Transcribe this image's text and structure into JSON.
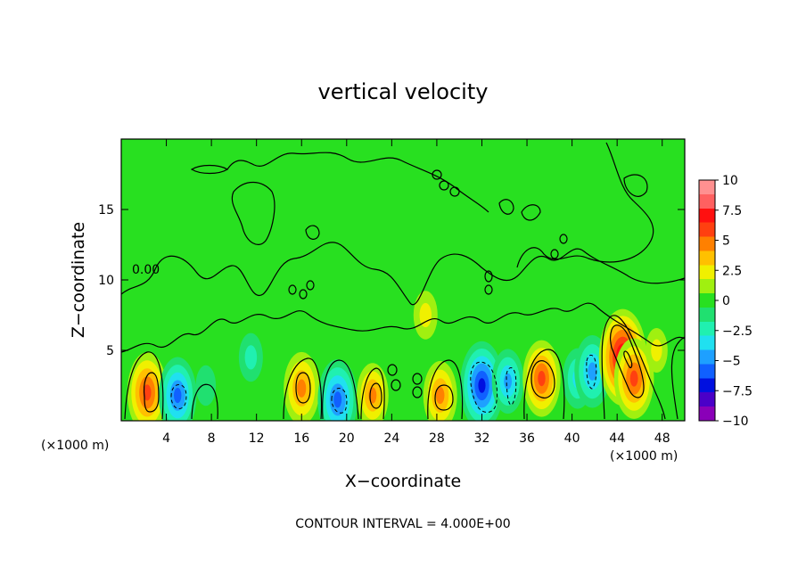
{
  "chart_data": {
    "type": "heatmap",
    "title": "vertical velocity",
    "xlabel": "X−coordinate",
    "ylabel": "Z−coordinate",
    "x_unit": "(×1000 m)",
    "x_unit_right": "(×1000 m)",
    "xlim": [
      0,
      50
    ],
    "ylim": [
      0,
      20
    ],
    "xticks": [
      "4",
      "8",
      "12",
      "16",
      "20",
      "24",
      "28",
      "32",
      "36",
      "40",
      "44",
      "48"
    ],
    "yticks": [
      "5",
      "10",
      "15"
    ],
    "colorbar": {
      "ticks": [
        "10",
        "7.5",
        "5",
        "2.5",
        "0",
        "−2.5",
        "−5",
        "−7.5",
        "−10"
      ],
      "range": [
        -10,
        10
      ],
      "colors": [
        "#8a00b8",
        "#4a00c8",
        "#0010e0",
        "#1060ff",
        "#1ea0ff",
        "#20e0f0",
        "#20f0b0",
        "#20e070",
        "#28e020",
        "#a0f010",
        "#f0f000",
        "#ffc000",
        "#ff8000",
        "#ff4010",
        "#ff1010",
        "#ff6060",
        "#ff9090"
      ]
    },
    "contour_label": "0.00",
    "footer": "CONTOUR INTERVAL = 4.000E+00",
    "cells": [
      {
        "x": 2.3,
        "z": 2.0,
        "w": 6.5
      },
      {
        "x": 5.0,
        "z": 1.8,
        "w": -6.0
      },
      {
        "x": 7.5,
        "z": 2.5,
        "w": -1.5
      },
      {
        "x": 11.5,
        "z": 4.5,
        "w": -2.5
      },
      {
        "x": 16.0,
        "z": 2.3,
        "w": 5.5
      },
      {
        "x": 19.2,
        "z": 1.5,
        "w": -6.5
      },
      {
        "x": 22.3,
        "z": 1.8,
        "w": 4.5
      },
      {
        "x": 28.3,
        "z": 1.8,
        "w": 5.0
      },
      {
        "x": 32.0,
        "z": 2.5,
        "w": -7.5
      },
      {
        "x": 34.3,
        "z": 2.8,
        "w": -4.5
      },
      {
        "x": 37.3,
        "z": 3.0,
        "w": 6.0
      },
      {
        "x": 40.5,
        "z": 3.0,
        "w": -4.0
      },
      {
        "x": 41.8,
        "z": 3.5,
        "w": -5.5
      },
      {
        "x": 44.5,
        "z": 4.5,
        "w": 8.5
      },
      {
        "x": 45.5,
        "z": 3.0,
        "w": 6.5
      },
      {
        "x": 27.0,
        "z": 7.5,
        "w": 2.5
      },
      {
        "x": 47.5,
        "z": 5.0,
        "w": 2.0
      }
    ]
  }
}
